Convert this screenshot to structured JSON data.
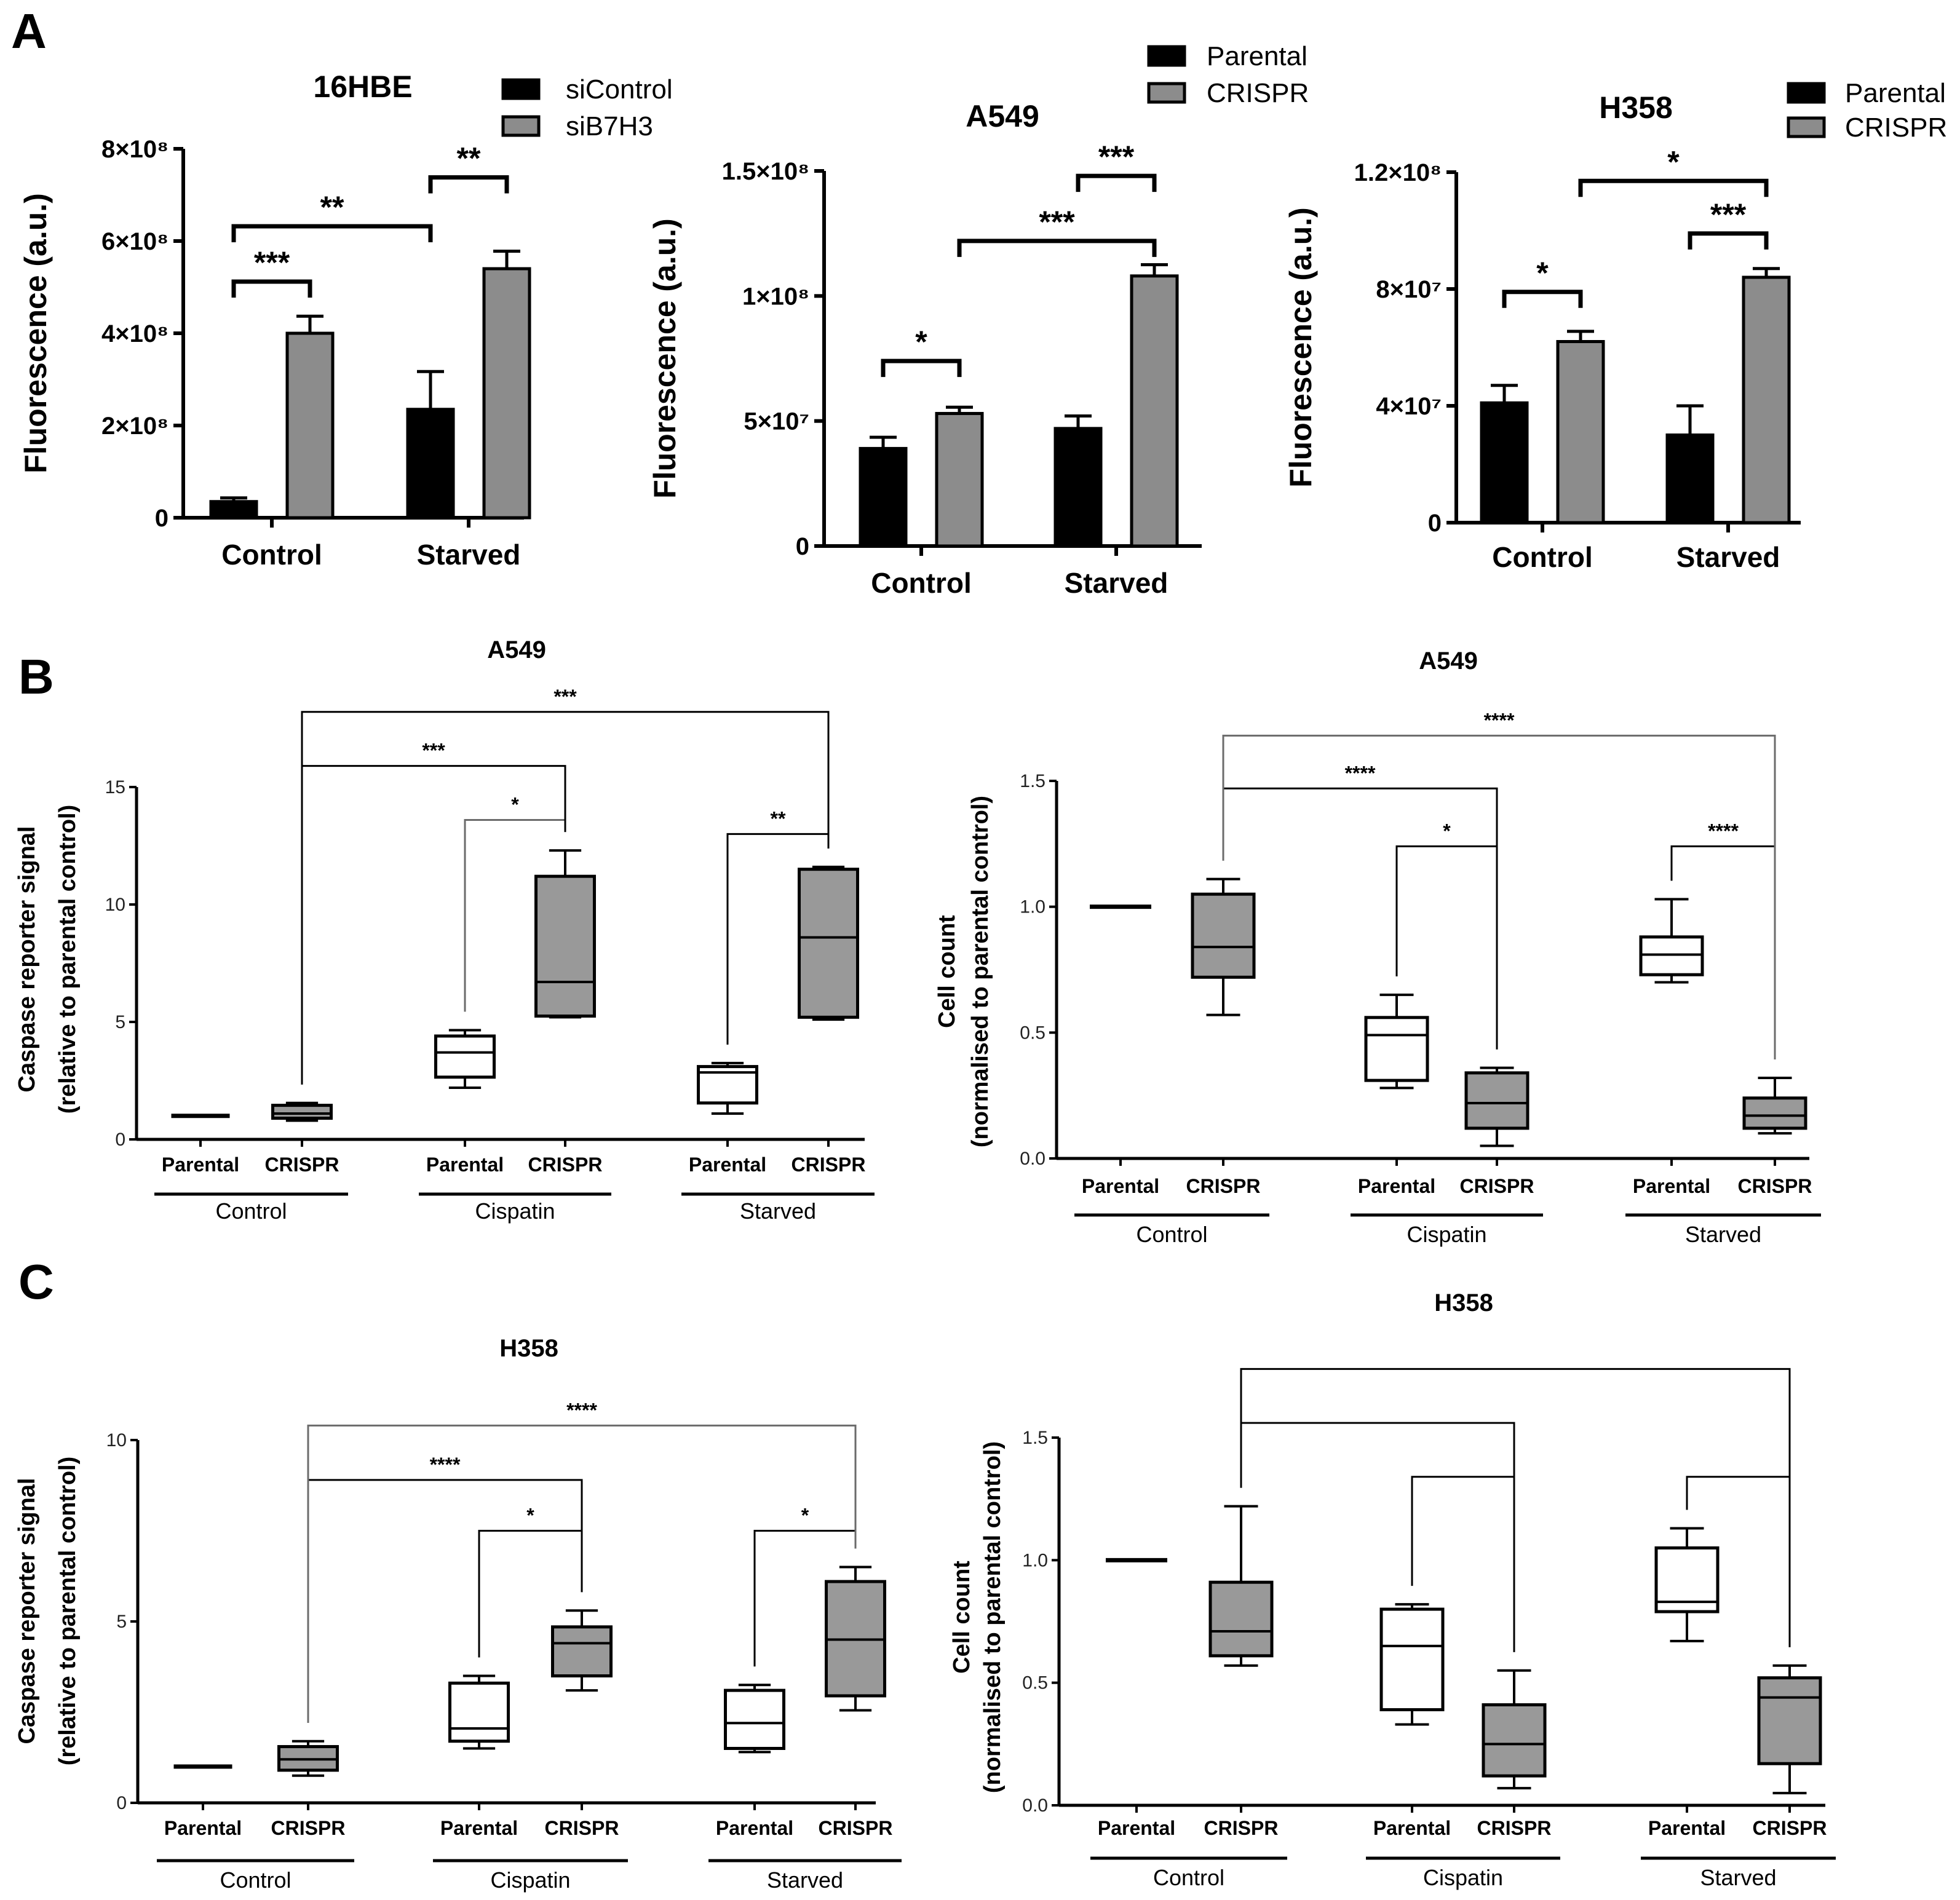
{
  "panel_labels": [
    "A",
    "B",
    "C"
  ],
  "colors": {
    "black_bar": "#000000",
    "gray_bar": "#8c8c8c",
    "white_box": "#ffffff",
    "gray_box": "#999999",
    "axis": "#000000",
    "bracket_light": "#6b6b6b"
  },
  "chart_data": [
    {
      "id": "a1",
      "type": "bar",
      "title": "16HBE",
      "ylabel": "Fluorescence (a.u.)",
      "categories": [
        "Control",
        "Starved"
      ],
      "ylim": [
        0,
        800000000
      ],
      "yticks": [
        0,
        200000000,
        400000000,
        600000000,
        800000000
      ],
      "ytick_labels": [
        "0",
        "2×10⁸",
        "4×10⁸",
        "6×10⁸",
        "8×10⁸"
      ],
      "legend": [
        "siControl",
        "siB7H3"
      ],
      "series": [
        {
          "name": "siControl",
          "color": "#000000",
          "values": [
            35000000,
            235000000
          ],
          "errors": [
            8000000,
            82000000
          ]
        },
        {
          "name": "siB7H3",
          "color": "#8c8c8c",
          "values": [
            400000000,
            540000000
          ],
          "errors": [
            37000000,
            38000000
          ]
        }
      ],
      "comparisons": [
        {
          "from": [
            0,
            0
          ],
          "to": [
            0,
            1
          ],
          "y": 512000000,
          "label": "***"
        },
        {
          "from": [
            0,
            0
          ],
          "to": [
            1,
            0
          ],
          "y": 632000000,
          "label": "**"
        },
        {
          "from": [
            1,
            0
          ],
          "to": [
            1,
            1
          ],
          "y": 738000000,
          "label": "**"
        }
      ]
    },
    {
      "id": "a2",
      "type": "bar",
      "title": "A549",
      "ylabel": "Fluorescence (a.u.)",
      "categories": [
        "Control",
        "Starved"
      ],
      "ylim": [
        0,
        150000000
      ],
      "yticks": [
        0,
        50000000,
        100000000,
        150000000
      ],
      "ytick_labels": [
        "0",
        "5×10⁷",
        "1×10⁸",
        "1.5×10⁸"
      ],
      "legend": [
        "Parental",
        "CRISPR"
      ],
      "series": [
        {
          "name": "Parental",
          "color": "#000000",
          "values": [
            39000000,
            47000000
          ],
          "errors": [
            4500000,
            5000000
          ]
        },
        {
          "name": "CRISPR",
          "color": "#8c8c8c",
          "values": [
            53000000,
            108000000
          ],
          "errors": [
            2500000,
            4500000
          ]
        }
      ],
      "comparisons": [
        {
          "from": [
            0,
            0
          ],
          "to": [
            0,
            1
          ],
          "y": 74000000,
          "label": "*"
        },
        {
          "from": [
            0,
            1
          ],
          "to": [
            1,
            1
          ],
          "y": 122000000,
          "label": "***"
        },
        {
          "from": [
            1,
            0
          ],
          "to": [
            1,
            1
          ],
          "y": 148000000,
          "label": "***"
        }
      ]
    },
    {
      "id": "a3",
      "type": "bar",
      "title": "H358",
      "ylabel": "Fluorescence (a.u.)",
      "categories": [
        "Control",
        "Starved"
      ],
      "ylim": [
        0,
        120000000
      ],
      "yticks": [
        0,
        40000000,
        80000000,
        120000000
      ],
      "ytick_labels": [
        "0",
        "4×10⁷",
        "8×10⁷",
        "1.2×10⁸"
      ],
      "legend": [
        "Parental",
        "CRISPR"
      ],
      "series": [
        {
          "name": "Parental",
          "color": "#000000",
          "values": [
            41000000,
            30000000
          ],
          "errors": [
            6000000,
            10000000
          ]
        },
        {
          "name": "CRISPR",
          "color": "#8c8c8c",
          "values": [
            62000000,
            84000000
          ],
          "errors": [
            3500000,
            3000000
          ]
        }
      ],
      "comparisons": [
        {
          "from": [
            0,
            0
          ],
          "to": [
            0,
            1
          ],
          "y": 79000000,
          "label": "*"
        },
        {
          "from": [
            1,
            0
          ],
          "to": [
            1,
            1
          ],
          "y": 99000000,
          "label": "***"
        },
        {
          "from": [
            0,
            1
          ],
          "to": [
            1,
            1
          ],
          "y": 117000000,
          "label": "*"
        }
      ]
    },
    {
      "id": "b1",
      "type": "box",
      "title": "A549",
      "ylabel": [
        "Caspase reporter signal",
        "(relative to parental control)"
      ],
      "ylim": [
        0,
        15
      ],
      "yticks": [
        0,
        5,
        10,
        15
      ],
      "ytick_labels": [
        "0",
        "5",
        "10",
        "15"
      ],
      "labels": [
        "Parental",
        "CRISPR",
        "Parental",
        "CRISPR",
        "Parental",
        "CRISPR"
      ],
      "groups": [
        "Control",
        "Cispatin",
        "Starved"
      ],
      "boxes": [
        {
          "min": 1,
          "q1": 1,
          "median": 1,
          "q3": 1,
          "max": 1,
          "fill": "#ffffff"
        },
        {
          "min": 0.8,
          "q1": 0.9,
          "median": 1.1,
          "q3": 1.45,
          "max": 1.55,
          "fill": "#999999"
        },
        {
          "min": 2.2,
          "q1": 2.65,
          "median": 3.7,
          "q3": 4.4,
          "max": 4.65,
          "fill": "#ffffff"
        },
        {
          "min": 5.2,
          "q1": 5.25,
          "median": 6.7,
          "q3": 11.2,
          "max": 12.3,
          "fill": "#999999"
        },
        {
          "min": 1.1,
          "q1": 1.55,
          "median": 2.85,
          "q3": 3.1,
          "max": 3.25,
          "fill": "#ffffff"
        },
        {
          "min": 5.1,
          "q1": 5.2,
          "median": 8.6,
          "q3": 11.5,
          "max": 11.6,
          "fill": "#999999"
        }
      ],
      "brackets": [
        {
          "from": 2,
          "to": 3,
          "y": 13.6,
          "label": "*",
          "color": "#6b6b6b"
        },
        {
          "from": 4,
          "to": 5,
          "y": 13.0,
          "label": "**",
          "color": "#000000"
        },
        {
          "from": 1,
          "to": 3,
          "y": 15.9,
          "label": "***",
          "color": "#000000"
        },
        {
          "from": 1,
          "to": 5,
          "y": 18.2,
          "label": "***",
          "color": "#000000"
        }
      ]
    },
    {
      "id": "b2",
      "type": "box",
      "title": "A549",
      "ylabel": [
        "Cell count",
        "(normalised to parental control)"
      ],
      "ylim": [
        0,
        1.5
      ],
      "yticks": [
        0,
        0.5,
        1.0,
        1.5
      ],
      "ytick_labels": [
        "0.0",
        "0.5",
        "1.0",
        "1.5"
      ],
      "labels": [
        "Parental",
        "CRISPR",
        "Parental",
        "CRISPR",
        "Parental",
        "CRISPR"
      ],
      "groups": [
        "Control",
        "Cispatin",
        "Starved"
      ],
      "boxes": [
        {
          "min": 1,
          "q1": 1,
          "median": 1,
          "q3": 1,
          "max": 1,
          "fill": "#ffffff"
        },
        {
          "min": 0.57,
          "q1": 0.72,
          "median": 0.84,
          "q3": 1.05,
          "max": 1.11,
          "fill": "#999999"
        },
        {
          "min": 0.28,
          "q1": 0.31,
          "median": 0.49,
          "q3": 0.56,
          "max": 0.65,
          "fill": "#ffffff"
        },
        {
          "min": 0.05,
          "q1": 0.12,
          "median": 0.22,
          "q3": 0.34,
          "max": 0.36,
          "fill": "#999999"
        },
        {
          "min": 0.7,
          "q1": 0.73,
          "median": 0.81,
          "q3": 0.88,
          "max": 1.03,
          "fill": "#ffffff"
        },
        {
          "min": 0.1,
          "q1": 0.12,
          "median": 0.17,
          "q3": 0.24,
          "max": 0.32,
          "fill": "#999999"
        }
      ],
      "brackets": [
        {
          "from": 2,
          "to": 3,
          "y": 1.24,
          "label": "*",
          "color": "#000000"
        },
        {
          "from": 4,
          "to": 5,
          "y": 1.24,
          "label": "****",
          "color": "#000000"
        },
        {
          "from": 1,
          "to": 3,
          "y": 1.47,
          "label": "****",
          "color": "#000000"
        },
        {
          "from": 1,
          "to": 5,
          "y": 1.68,
          "label": "****",
          "color": "#6b6b6b"
        }
      ]
    },
    {
      "id": "c1",
      "type": "box",
      "title": "H358",
      "ylabel": [
        "Caspase reporter signal",
        "(relative to parental control)"
      ],
      "ylim": [
        0,
        10
      ],
      "yticks": [
        0,
        5,
        10
      ],
      "ytick_labels": [
        "0",
        "5",
        "10"
      ],
      "labels": [
        "Parental",
        "CRISPR",
        "Parental",
        "CRISPR",
        "Parental",
        "CRISPR"
      ],
      "groups": [
        "Control",
        "Cispatin",
        "Starved"
      ],
      "boxes": [
        {
          "min": 1,
          "q1": 1,
          "median": 1,
          "q3": 1,
          "max": 1,
          "fill": "#ffffff"
        },
        {
          "min": 0.75,
          "q1": 0.9,
          "median": 1.2,
          "q3": 1.55,
          "max": 1.7,
          "fill": "#999999"
        },
        {
          "min": 1.5,
          "q1": 1.7,
          "median": 2.05,
          "q3": 3.3,
          "max": 3.5,
          "fill": "#ffffff"
        },
        {
          "min": 3.1,
          "q1": 3.5,
          "median": 4.4,
          "q3": 4.85,
          "max": 5.3,
          "fill": "#999999"
        },
        {
          "min": 1.4,
          "q1": 1.5,
          "median": 2.2,
          "q3": 3.1,
          "max": 3.25,
          "fill": "#ffffff"
        },
        {
          "min": 2.55,
          "q1": 2.95,
          "median": 4.5,
          "q3": 6.1,
          "max": 6.5,
          "fill": "#999999"
        }
      ],
      "brackets": [
        {
          "from": 2,
          "to": 3,
          "y": 7.5,
          "label": "*",
          "color": "#000000"
        },
        {
          "from": 4,
          "to": 5,
          "y": 7.5,
          "label": "*",
          "color": "#000000"
        },
        {
          "from": 1,
          "to": 3,
          "y": 8.9,
          "label": "****",
          "color": "#000000"
        },
        {
          "from": 1,
          "to": 5,
          "y": 10.4,
          "label": "****",
          "color": "#6b6b6b"
        }
      ]
    },
    {
      "id": "c2",
      "type": "box",
      "title": "H358",
      "ylabel": [
        "Cell count",
        "(normalised to parental control)"
      ],
      "ylim": [
        0,
        1.5
      ],
      "yticks": [
        0,
        0.5,
        1.0,
        1.5
      ],
      "ytick_labels": [
        "0.0",
        "0.5",
        "1.0",
        "1.5"
      ],
      "labels": [
        "Parental",
        "CRISPR",
        "Parental",
        "CRISPR",
        "Parental",
        "CRISPR"
      ],
      "groups": [
        "Control",
        "Cispatin",
        "Starved"
      ],
      "boxes": [
        {
          "min": 1,
          "q1": 1,
          "median": 1,
          "q3": 1,
          "max": 1,
          "fill": "#ffffff"
        },
        {
          "min": 0.57,
          "q1": 0.61,
          "median": 0.71,
          "q3": 0.91,
          "max": 1.22,
          "fill": "#999999"
        },
        {
          "min": 0.33,
          "q1": 0.39,
          "median": 0.65,
          "q3": 0.8,
          "max": 0.82,
          "fill": "#ffffff"
        },
        {
          "min": 0.07,
          "q1": 0.12,
          "median": 0.25,
          "q3": 0.41,
          "max": 0.55,
          "fill": "#999999"
        },
        {
          "min": 0.67,
          "q1": 0.79,
          "median": 0.83,
          "q3": 1.05,
          "max": 1.13,
          "fill": "#ffffff"
        },
        {
          "min": 0.05,
          "q1": 0.17,
          "median": 0.44,
          "q3": 0.52,
          "max": 0.57,
          "fill": "#999999"
        }
      ],
      "brackets": [
        {
          "from": 2,
          "to": 3,
          "y": 1.34,
          "label": "",
          "color": "#000000"
        },
        {
          "from": 4,
          "to": 5,
          "y": 1.34,
          "label": "",
          "color": "#000000"
        },
        {
          "from": 1,
          "to": 3,
          "y": 1.56,
          "label": "",
          "color": "#000000"
        },
        {
          "from": 1,
          "to": 5,
          "y": 1.78,
          "label": "",
          "color": "#000000"
        }
      ]
    }
  ]
}
